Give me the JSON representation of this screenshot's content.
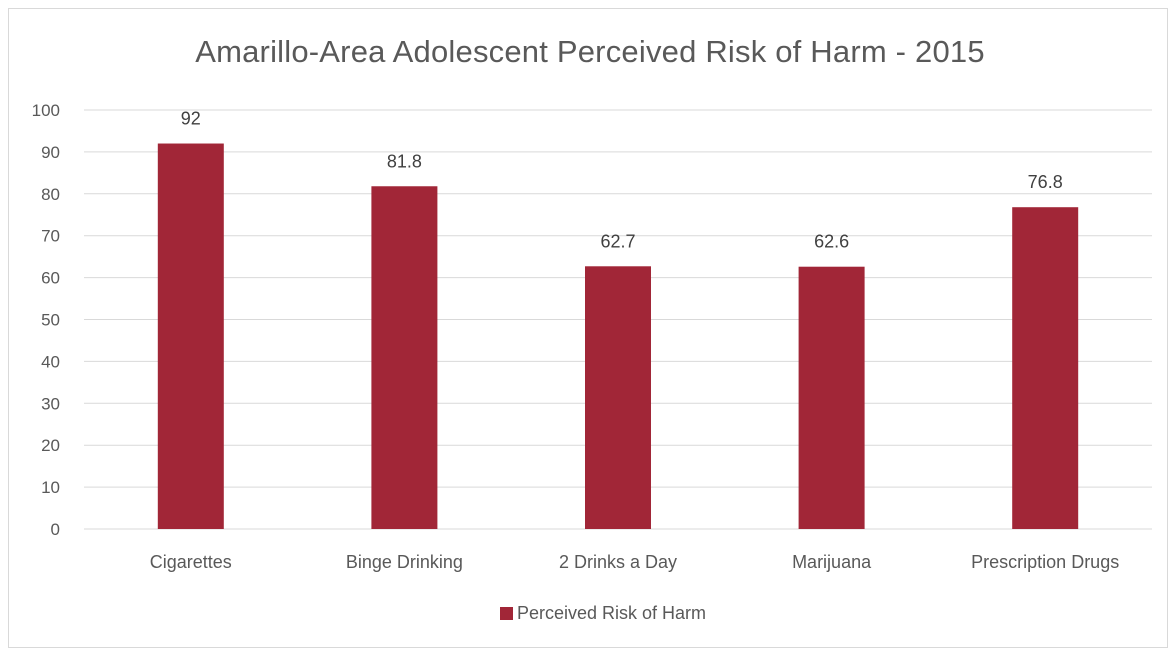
{
  "chart_data": {
    "type": "bar",
    "title": "Amarillo-Area Adolescent Perceived Risk of Harm - 2015",
    "categories": [
      "Cigarettes",
      "Binge Drinking",
      "2 Drinks a Day",
      "Marijuana",
      "Prescription Drugs"
    ],
    "series": [
      {
        "name": "Perceived Risk of Harm",
        "values": [
          92,
          81.8,
          62.7,
          62.6,
          76.8
        ],
        "labels": [
          "92",
          "81.8",
          "62.7",
          "62.6",
          "76.8"
        ]
      }
    ],
    "yticks": [
      "0",
      "10",
      "20",
      "30",
      "40",
      "50",
      "60",
      "70",
      "80",
      "90",
      "100"
    ],
    "ylim": [
      0,
      100
    ],
    "grid": true,
    "legend": "bottom",
    "bar_color": "#a12637",
    "grid_color": "#d9d9d9",
    "text_color": "#595959"
  }
}
